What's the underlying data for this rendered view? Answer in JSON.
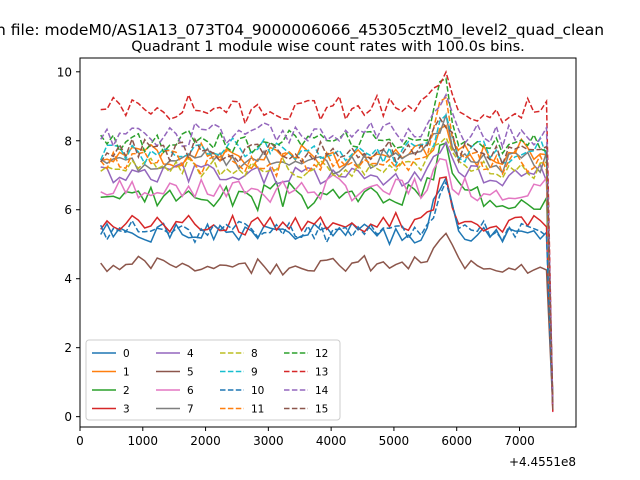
{
  "figure": {
    "suptitle": "n file: modeM0/AS1A13_073T04_9000006066_45305cztM0_level2_quad_clean",
    "title": "Quadrant 1 module wise count rates with 100.0s bins.",
    "x_offset_label": "+4.4551e8"
  },
  "chart_data": {
    "type": "line",
    "title": "Quadrant 1 module wise count rates with 100.0s bins.",
    "xlabel": "",
    "ylabel": "",
    "xlim": [
      0,
      7900
    ],
    "ylim": [
      -0.3,
      10.4
    ],
    "x_ticks": [
      0,
      1000,
      2000,
      3000,
      4000,
      5000,
      6000,
      7000
    ],
    "y_ticks": [
      0,
      2,
      4,
      6,
      8,
      10
    ],
    "x_offset": "+4.4551e8",
    "grid": false,
    "legend_position": "lower-left",
    "legend_columns": 4,
    "x_start": 330,
    "x_step": 100,
    "n_points": 73,
    "series": [
      {
        "name": "0",
        "color": "#1f77b4",
        "dashed": false,
        "base": 5.3,
        "amp": 0.25,
        "peak": 1.6,
        "seed": 1
      },
      {
        "name": "1",
        "color": "#ff7f0e",
        "dashed": false,
        "base": 7.6,
        "amp": 0.3,
        "peak": 0.9,
        "seed": 2
      },
      {
        "name": "2",
        "color": "#2ca02c",
        "dashed": false,
        "base": 6.4,
        "amp": 0.3,
        "peak": 1.5,
        "seed": 3
      },
      {
        "name": "3",
        "color": "#d62728",
        "dashed": false,
        "base": 5.6,
        "amp": 0.25,
        "peak": 1.2,
        "seed": 4
      },
      {
        "name": "4",
        "color": "#9467bd",
        "dashed": false,
        "base": 7.0,
        "amp": 0.3,
        "peak": 0.9,
        "seed": 5
      },
      {
        "name": "5",
        "color": "#8c564b",
        "dashed": false,
        "base": 4.4,
        "amp": 0.2,
        "peak": 0.8,
        "seed": 6
      },
      {
        "name": "6",
        "color": "#e377c2",
        "dashed": false,
        "base": 6.6,
        "amp": 0.3,
        "peak": 0.8,
        "seed": 7
      },
      {
        "name": "7",
        "color": "#7f7f7f",
        "dashed": false,
        "base": 7.4,
        "amp": 0.3,
        "peak": 1.2,
        "seed": 8
      },
      {
        "name": "8",
        "color": "#bcbd22",
        "dashed": true,
        "base": 7.2,
        "amp": 0.25,
        "peak": 0.9,
        "seed": 9
      },
      {
        "name": "9",
        "color": "#17becf",
        "dashed": true,
        "base": 7.7,
        "amp": 0.3,
        "peak": 0.9,
        "seed": 10
      },
      {
        "name": "10",
        "color": "#1f77b4",
        "dashed": true,
        "base": 5.4,
        "amp": 0.25,
        "peak": 1.2,
        "seed": 11
      },
      {
        "name": "11",
        "color": "#ff7f0e",
        "dashed": true,
        "base": 7.4,
        "amp": 0.3,
        "peak": 1.8,
        "seed": 12
      },
      {
        "name": "12",
        "color": "#2ca02c",
        "dashed": true,
        "base": 8.0,
        "amp": 0.3,
        "peak": 1.6,
        "seed": 13
      },
      {
        "name": "13",
        "color": "#d62728",
        "dashed": true,
        "base": 8.9,
        "amp": 0.3,
        "peak": 1.0,
        "seed": 14
      },
      {
        "name": "14",
        "color": "#9467bd",
        "dashed": true,
        "base": 8.2,
        "amp": 0.3,
        "peak": 0.9,
        "seed": 15
      },
      {
        "name": "15",
        "color": "#8c564b",
        "dashed": true,
        "base": 7.7,
        "amp": 0.3,
        "peak": 0.9,
        "seed": 16
      }
    ]
  }
}
